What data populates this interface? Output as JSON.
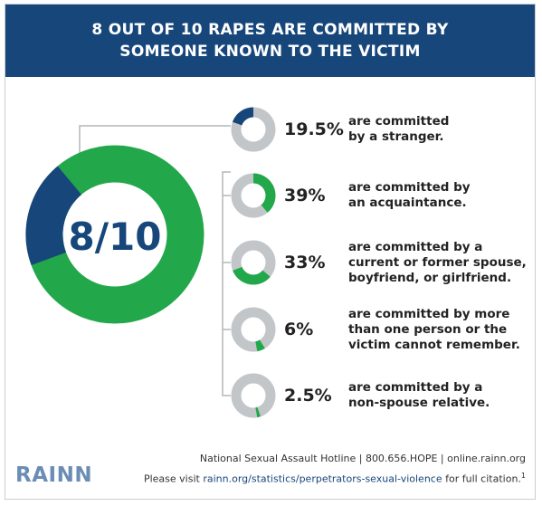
{
  "header": {
    "title": "8 OUT OF 10 RAPES ARE COMMITTED BY SOMEONE KNOWN TO THE VICTIM"
  },
  "main_donut": {
    "label": "8/10",
    "known_fraction": 0.805,
    "stranger_fraction": 0.195
  },
  "colors": {
    "navy": "#17467a",
    "green": "#22a84b",
    "gray": "#c3c6c9",
    "connector": "#b3b7bb"
  },
  "chart_data": {
    "type": "pie",
    "categories": [
      "are committed by a stranger.",
      "are committed by an acquaintance.",
      "are committed by a current or former spouse, boyfriend, or girlfriend.",
      "are committed by more than one person or the victim cannot remember.",
      "are committed by a non-spouse relative."
    ],
    "values": [
      19.5,
      39,
      33,
      6,
      2.5
    ],
    "labels": [
      "19.5%",
      "39%",
      "33%",
      "6%",
      "2.5%"
    ],
    "title": "8 OUT OF 10 RAPES ARE COMMITTED BY SOMEONE KNOWN TO THE VICTIM"
  },
  "items": [
    {
      "pct": "19.5%",
      "value": 19.5,
      "color": "navy",
      "lines": [
        "are committed",
        "by a stranger."
      ]
    },
    {
      "pct": "39%",
      "value": 39,
      "color": "green",
      "lines": [
        "are committed by",
        "an acquaintance."
      ]
    },
    {
      "pct": "33%",
      "value": 33,
      "color": "green",
      "lines": [
        "are committed by a",
        "current or former spouse,",
        "boyfriend, or girlfriend."
      ]
    },
    {
      "pct": "6%",
      "value": 6,
      "color": "green",
      "lines": [
        "are committed by more",
        "than one person or the",
        "victim cannot remember."
      ]
    },
    {
      "pct": "2.5%",
      "value": 2.5,
      "color": "green",
      "lines": [
        "are committed by a",
        "non-spouse relative."
      ]
    }
  ],
  "footer": {
    "hotline": "National Sexual Assault Hotline | 800.656.HOPE | online.rainn.org",
    "visit_prefix": "Please visit ",
    "visit_link": "rainn.org/statistics/perpetrators-sexual-violence",
    "visit_suffix": " for full citation.",
    "citation_number": "1",
    "logo_text": "RAINN"
  }
}
